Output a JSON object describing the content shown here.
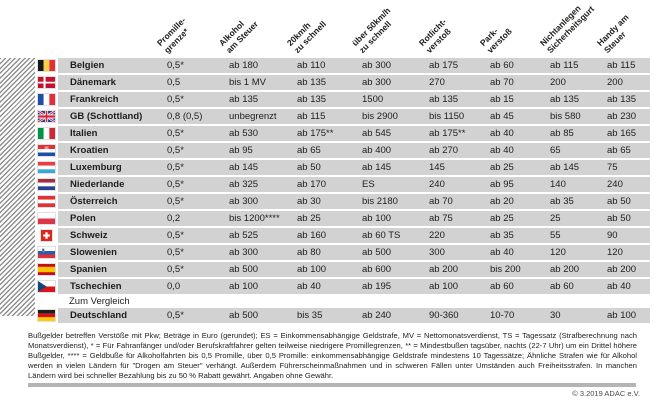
{
  "chart_data": {
    "type": "table",
    "columns": [
      {
        "id": "promillegrenze",
        "label_lines": [
          "Promille-",
          "grenze*"
        ]
      },
      {
        "id": "alkohol-am-steuer",
        "label_lines": [
          "Alkohol",
          "am Steuer"
        ]
      },
      {
        "id": "20kmh-zu-schnell",
        "label_lines": [
          "20km/h",
          "zu schnell"
        ]
      },
      {
        "id": "ueber-50kmh-zu-schnell",
        "label_lines": [
          "über 50km/h",
          "zu schnell"
        ]
      },
      {
        "id": "rotlichtverstoss",
        "label_lines": [
          "Rotlicht-",
          "verstoß"
        ]
      },
      {
        "id": "parkverstoss",
        "label_lines": [
          "Park-",
          "verstoß"
        ]
      },
      {
        "id": "sicherheitsgurt",
        "label_lines": [
          "Nichtanlegen",
          "Sicherheitsgurt"
        ]
      },
      {
        "id": "handy-am-steuer",
        "label_lines": [
          "Handy am",
          "Steuer"
        ]
      }
    ],
    "rows": [
      {
        "country": "Belgien",
        "flag": "be",
        "values": [
          "0,5*",
          "ab 180",
          "ab 110",
          "ab 300",
          "ab 175",
          "ab 60",
          "ab 115",
          "ab 115"
        ]
      },
      {
        "country": "Dänemark",
        "flag": "dk",
        "values": [
          "0,5",
          "bis 1 MV",
          "ab 135",
          "ab 300",
          "270",
          "ab 70",
          "200",
          "200"
        ]
      },
      {
        "country": "Frankreich",
        "flag": "fr",
        "values": [
          "0,5*",
          "ab 135",
          "ab 135",
          "1500",
          "ab 135",
          "ab 15",
          "ab 135",
          "ab 135"
        ]
      },
      {
        "country": "GB (Schottland)",
        "flag": "gb",
        "values": [
          "0,8 (0,5)",
          "unbegrenzt",
          "ab 115",
          "bis 2900",
          "bis 1150",
          "ab 45",
          "bis 580",
          "ab 230"
        ]
      },
      {
        "country": "Italien",
        "flag": "it",
        "values": [
          "0,5*",
          "ab 530",
          "ab 175**",
          "ab 545",
          "ab 175**",
          "ab 40",
          "ab 85",
          "ab 165"
        ]
      },
      {
        "country": "Kroatien",
        "flag": "hr",
        "values": [
          "0,5*",
          "ab 95",
          "ab 65",
          "ab 400",
          "ab 270",
          "ab 40",
          "65",
          "ab 65"
        ]
      },
      {
        "country": "Luxemburg",
        "flag": "lu",
        "values": [
          "0,5*",
          "ab 145",
          "ab 50",
          "ab 145",
          "145",
          "ab 25",
          "ab 145",
          "75"
        ]
      },
      {
        "country": "Niederlande",
        "flag": "nl",
        "values": [
          "0,5*",
          "ab 325",
          "ab 170",
          "ES",
          "240",
          "ab 95",
          "140",
          "240"
        ]
      },
      {
        "country": "Österreich",
        "flag": "at",
        "values": [
          "0,5*",
          "ab 300",
          "ab 30",
          "bis 2180",
          "ab 70",
          "ab 20",
          "ab 35",
          "ab 50"
        ]
      },
      {
        "country": "Polen",
        "flag": "pl",
        "values": [
          "0,2",
          "bis 1200****",
          "ab 25",
          "ab 100",
          "ab 75",
          "ab 25",
          "25",
          "ab 50"
        ]
      },
      {
        "country": "Schweiz",
        "flag": "ch",
        "values": [
          "0,5*",
          "ab 525",
          "ab 160",
          "ab 60 TS",
          "220",
          "ab 35",
          "55",
          "90"
        ]
      },
      {
        "country": "Slowenien",
        "flag": "si",
        "values": [
          "0,5*",
          "ab 300",
          "ab 80",
          "ab 500",
          "300",
          "ab 40",
          "120",
          "120"
        ]
      },
      {
        "country": "Spanien",
        "flag": "es",
        "values": [
          "0,5*",
          "ab 500",
          "ab 100",
          "ab 600",
          "ab 200",
          "bis 200",
          "ab 200",
          "ab 200"
        ]
      },
      {
        "country": "Tschechien",
        "flag": "cz",
        "values": [
          "0,0",
          "ab 100",
          "ab 40",
          "ab 195",
          "ab 100",
          "ab 60",
          "ab 60",
          "ab 40"
        ]
      }
    ],
    "comparison_label": "Zum Vergleich",
    "comparison_row": {
      "country": "Deutschland",
      "flag": "de",
      "values": [
        "0,5*",
        "ab 500",
        "bis 35",
        "ab 240",
        "90-360",
        "10-70",
        "30",
        "ab 100"
      ]
    }
  },
  "footnote": "Bußgelder betreffen Verstöße mit Pkw; Beträge in Euro (gerundet); ES = Einkommensabhängige Geldstrafe, MV = Nettomonatsverdienst, TS = Tagessatz (Strafberechnung nach Monatsverdienst), * = Für Fahranfänger und/oder Berufskraftfahrer gelten teilweise niedrigere Promillegrenzen, ** = Mindestbußen tagsüber, nachts (22-7 Uhr) um ein Drittel höhere Bußgelder, **** = Geldbuße für Alkoholfahrten bis 0,5 Promille, über 0,5 Promille: einkommensabhängige Geldstrafe mindestens 10 Tagessätze; Ähnliche Strafen wie für Alkohol werden in vielen Ländern für \"Drogen am Steuer\" verhängt. Außerdem Führerscheinmaßnahmen und in schweren Fällen unter Umständen auch Freiheitsstrafen. In manchen Ländern wird bei schneller Bezahlung bis zu 50 % Rabatt gewährt. Angaben ohne Gewähr.",
  "copyright": "© 3.2019 ADAC e.V.",
  "colors": {
    "row_background": "#d2d2d2",
    "text": "#1d1d1b",
    "divider": "#b4b4b4"
  }
}
